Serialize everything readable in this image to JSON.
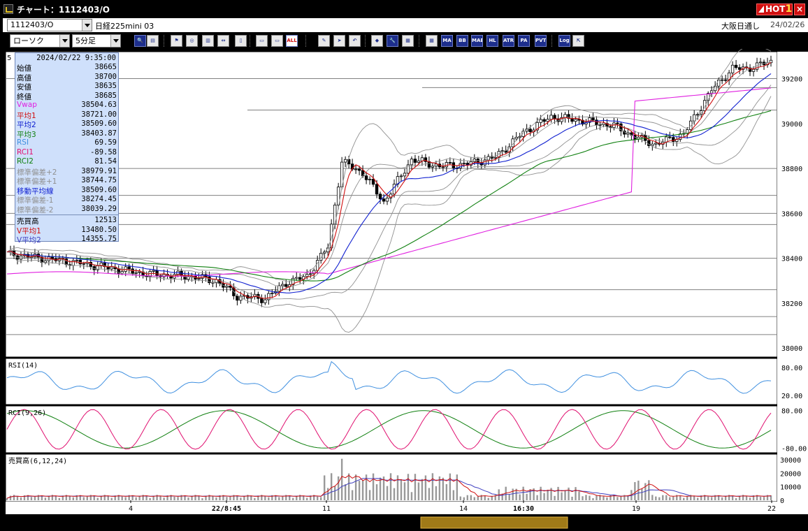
{
  "window": {
    "title": "チャート：1112403/O",
    "hot_label": "HOT",
    "hot_number": "1",
    "close_glyph": "×"
  },
  "symbol_bar": {
    "symbol": "1112403/O",
    "instrument": "日経225mini 03",
    "session": "大阪日通し",
    "date": "24/02/26"
  },
  "toolbar": {
    "chart_type": "ローソク",
    "interval": "5分足",
    "buttons": [
      {
        "name": "zoom",
        "label": "🔍"
      },
      {
        "name": "grid",
        "label": "▤"
      },
      {
        "name": "tool-a",
        "label": "⚑"
      },
      {
        "name": "tool-b",
        "label": "◎"
      },
      {
        "name": "tool-c",
        "label": "▥"
      },
      {
        "name": "tool-d",
        "label": "↔"
      },
      {
        "name": "tool-e",
        "label": "▯"
      },
      {
        "name": "tool-f",
        "label": "▭"
      },
      {
        "name": "tool-g",
        "label": "▭"
      },
      {
        "name": "all",
        "label": "ALL"
      },
      {
        "name": "pencil",
        "label": "✎"
      },
      {
        "name": "cursor",
        "label": "➤"
      },
      {
        "name": "undo",
        "label": "↶"
      },
      {
        "name": "fill",
        "label": "◆"
      },
      {
        "name": "wrench",
        "label": "🔧"
      },
      {
        "name": "color",
        "label": "▦"
      },
      {
        "name": "ind1",
        "label": "▦"
      },
      {
        "name": "ma",
        "label": "MA"
      },
      {
        "name": "bb",
        "label": "BB"
      },
      {
        "name": "mae",
        "label": "MAE"
      },
      {
        "name": "hl",
        "label": "HL"
      },
      {
        "name": "atr",
        "label": "ATR"
      },
      {
        "name": "para",
        "label": "PA"
      },
      {
        "name": "pvt",
        "label": "PVT"
      },
      {
        "name": "log",
        "label": "Log"
      },
      {
        "name": "export",
        "label": "⇱"
      }
    ]
  },
  "info_panel": {
    "timestamp": "2024/02/22  9:35:00",
    "rows": [
      {
        "label": "始値",
        "value": "38665",
        "color": "#000000"
      },
      {
        "label": "高値",
        "value": "38700",
        "color": "#000000"
      },
      {
        "label": "安値",
        "value": "38635",
        "color": "#000000"
      },
      {
        "label": "終値",
        "value": "38685",
        "color": "#000000"
      },
      {
        "label": "Vwap",
        "value": "38504.63",
        "color": "#e020e0"
      },
      {
        "label": "平均1",
        "value": "38721.00",
        "color": "#d01010"
      },
      {
        "label": "平均2",
        "value": "38509.60",
        "color": "#1020d0"
      },
      {
        "label": "平均3",
        "value": "38403.87",
        "color": "#108010"
      },
      {
        "label": "RSI",
        "value": "69.59",
        "color": "#4090e0"
      },
      {
        "label": "RCI1",
        "value": "-89.58",
        "color": "#e01070"
      },
      {
        "label": "RCI2",
        "value": "81.54",
        "color": "#108010"
      },
      {
        "label": "標準偏差+2",
        "value": "38979.91",
        "color": "#909090"
      },
      {
        "label": "標準偏差+1",
        "value": "38744.75",
        "color": "#909090"
      },
      {
        "label": "移動平均線",
        "value": "38509.60",
        "color": "#1020d0"
      },
      {
        "label": "標準偏差-1",
        "value": "38274.45",
        "color": "#909090"
      },
      {
        "label": "標準偏差-2",
        "value": "38039.29",
        "color": "#909090"
      },
      {
        "label": "売買高",
        "value": "12513",
        "color": "#000000"
      },
      {
        "label": "V平均1",
        "value": "13480.50",
        "color": "#d01010"
      },
      {
        "label": "V平均2",
        "value": "14355.75",
        "color": "#4040c0"
      }
    ]
  },
  "chart_data": {
    "type": "candlestick",
    "price_axis": {
      "ticks": [
        "39200",
        "39000",
        "38800",
        "38600",
        "38400",
        "38200",
        "38000"
      ],
      "range": [
        37960,
        39320
      ]
    },
    "time_axis": {
      "labels": [
        "4",
        "22/8:45",
        "11",
        "14",
        "16:30",
        "19",
        "22"
      ]
    },
    "panels": [
      {
        "name": "RSI(14)",
        "ticks": [
          "80.00",
          "20.00"
        ]
      },
      {
        "name": "RCI(9,26)",
        "ticks": [
          "80.00",
          "-80.00"
        ]
      },
      {
        "name": "売買高(6,12,24)",
        "ticks": [
          "30000",
          "20000",
          "10000",
          "0"
        ]
      }
    ],
    "colors": {
      "ma_short": "#d01010",
      "ma_mid": "#1020d0",
      "ma_long": "#108010",
      "vwap": "#e020e0",
      "bands": "#909090",
      "rsi": "#4090e0",
      "rci_short": "#e01070",
      "rci_long": "#108010",
      "volume": "#999999"
    }
  }
}
